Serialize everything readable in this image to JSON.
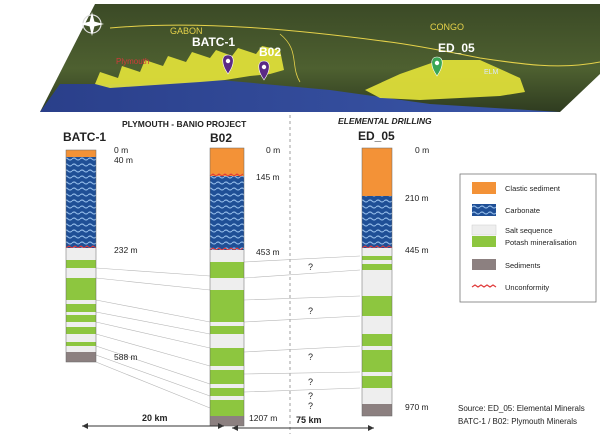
{
  "map": {
    "labels": {
      "gabon": "GABON",
      "congo": "CONGO",
      "plymouth": "Plymouth",
      "elm": "ELM"
    },
    "markers": [
      {
        "name": "BATC-1",
        "color": "#5b2a86"
      },
      {
        "name": "B02",
        "color": "#5b2a86"
      },
      {
        "name": "ED_05",
        "color": "#3aa655"
      }
    ]
  },
  "projects": {
    "left": "PLYMOUTH - BANIO PROJECT",
    "right": "ELEMENTAL DRILLING"
  },
  "wells": {
    "batc1": {
      "name": "BATC-1",
      "depths": [
        "0 m",
        "40 m",
        "232 m",
        "588 m"
      ]
    },
    "b02": {
      "name": "B02",
      "depths": [
        "0 m",
        "145 m",
        "453 m",
        "1207 m"
      ]
    },
    "ed05": {
      "name": "ED_05",
      "depths": [
        "0 m",
        "210 m",
        "445 m",
        "970 m"
      ]
    }
  },
  "correlation": {
    "question_marks": [
      "?",
      "?",
      "?",
      "?",
      "?",
      "?"
    ]
  },
  "distances": {
    "left": "20 km",
    "right": "75 km"
  },
  "legend": {
    "items": [
      {
        "label": "Clastic sediment",
        "color": "#f39237"
      },
      {
        "label": "Carbonate",
        "color": "#2f5fa8"
      },
      {
        "label": "Salt sequence",
        "color": "#eeeeee"
      },
      {
        "label": "Potash mineralisation",
        "color": "#8dc63f"
      },
      {
        "label": "Sediments",
        "color": "#8c8080"
      },
      {
        "label": "Unconformity",
        "color": "#e03a3a"
      }
    ]
  },
  "source": {
    "line1": "Source: ED_05: Elemental Minerals",
    "line2": "BATC-1 / B02: Plymouth Minerals"
  }
}
